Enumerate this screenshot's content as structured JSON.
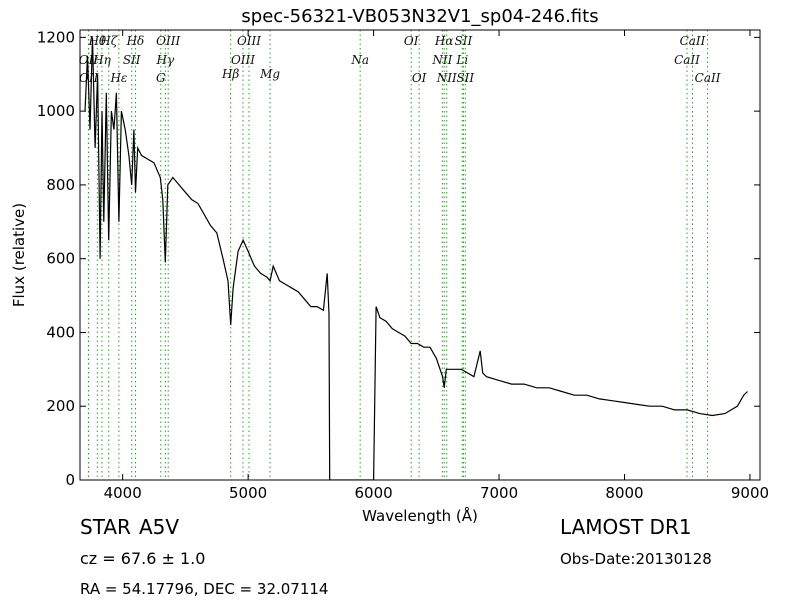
{
  "chart_data": {
    "type": "line",
    "title": "spec-56321-VB053N32V1_sp04-246.fits",
    "xlabel": "Wavelength (Å)",
    "ylabel": "Flux (relative)",
    "xlim": [
      3660,
      9080
    ],
    "ylim": [
      0,
      1220
    ],
    "xticks": [
      4000,
      5000,
      6000,
      7000,
      8000,
      9000
    ],
    "yticks": [
      0,
      200,
      400,
      600,
      800,
      1000,
      1200
    ],
    "color": "#000000",
    "marker_color": "#2ca02c",
    "x": [
      3700,
      3720,
      3740,
      3760,
      3780,
      3800,
      3820,
      3835,
      3850,
      3870,
      3889,
      3910,
      3930,
      3950,
      3970,
      3990,
      4020,
      4050,
      4072,
      4090,
      4102,
      4120,
      4150,
      4200,
      4250,
      4300,
      4320,
      4340,
      4360,
      4400,
      4450,
      4500,
      4550,
      4600,
      4650,
      4700,
      4750,
      4800,
      4840,
      4861,
      4880,
      4920,
      4960,
      5000,
      5050,
      5100,
      5150,
      5175,
      5200,
      5250,
      5300,
      5350,
      5400,
      5450,
      5500,
      5550,
      5600,
      5630,
      5645,
      5650,
      6000,
      6020,
      6050,
      6100,
      6150,
      6200,
      6250,
      6300,
      6350,
      6400,
      6450,
      6500,
      6550,
      6563,
      6580,
      6620,
      6700,
      6750,
      6800,
      6850,
      6870,
      6900,
      7000,
      7100,
      7200,
      7300,
      7400,
      7500,
      7600,
      7700,
      7800,
      7900,
      8000,
      8100,
      8200,
      8300,
      8400,
      8500,
      8600,
      8700,
      8800,
      8850,
      8900,
      8950,
      8980
    ],
    "values": [
      1000,
      1150,
      950,
      1200,
      900,
      1100,
      600,
      1000,
      700,
      1050,
      650,
      1000,
      950,
      1050,
      700,
      1000,
      950,
      880,
      800,
      950,
      780,
      900,
      880,
      870,
      860,
      820,
      760,
      590,
      800,
      820,
      800,
      780,
      760,
      750,
      720,
      690,
      670,
      600,
      540,
      420,
      520,
      620,
      650,
      620,
      580,
      560,
      550,
      540,
      580,
      540,
      530,
      520,
      510,
      490,
      470,
      470,
      460,
      560,
      450,
      0,
      0,
      470,
      440,
      430,
      410,
      400,
      390,
      370,
      370,
      360,
      360,
      330,
      280,
      250,
      300,
      300,
      300,
      290,
      280,
      350,
      290,
      280,
      270,
      260,
      260,
      250,
      250,
      240,
      230,
      230,
      220,
      215,
      210,
      205,
      200,
      200,
      190,
      190,
      180,
      175,
      180,
      190,
      200,
      230,
      240
    ],
    "spectral_lines": [
      {
        "label": "OII",
        "x": 3727
      },
      {
        "label": "OII",
        "x": 3729
      },
      {
        "label": "Hθ",
        "x": 3798
      },
      {
        "label": "Hη",
        "x": 3835
      },
      {
        "label": "Hζ",
        "x": 3889
      },
      {
        "label": "Hε",
        "x": 3970
      },
      {
        "label": "SII",
        "x": 4072
      },
      {
        "label": "Hδ",
        "x": 4102
      },
      {
        "label": "G",
        "x": 4304
      },
      {
        "label": "Hγ",
        "x": 4340
      },
      {
        "label": "OIII",
        "x": 4363
      },
      {
        "label": "Hβ",
        "x": 4861
      },
      {
        "label": "OIII",
        "x": 4959
      },
      {
        "label": "OIII",
        "x": 5007
      },
      {
        "label": "Mg",
        "x": 5175
      },
      {
        "label": "Na",
        "x": 5893
      },
      {
        "label": "OI",
        "x": 6300
      },
      {
        "label": "OI",
        "x": 6363
      },
      {
        "label": "NII",
        "x": 6548
      },
      {
        "label": "Hα",
        "x": 6563
      },
      {
        "label": "NII",
        "x": 6583
      },
      {
        "label": "Li",
        "x": 6707
      },
      {
        "label": "SII",
        "x": 6716
      },
      {
        "label": "SII",
        "x": 6731
      },
      {
        "label": "CaII",
        "x": 8498
      },
      {
        "label": "CaII",
        "x": 8542
      },
      {
        "label": "CaII",
        "x": 8662
      }
    ],
    "annotations": [
      "STAR",
      "A5V",
      "cz = 67.6  ± 1.0",
      "RA = 54.17796, DEC = 32.07114",
      "LAMOST DR1",
      "Obs-Date:20130128"
    ]
  }
}
